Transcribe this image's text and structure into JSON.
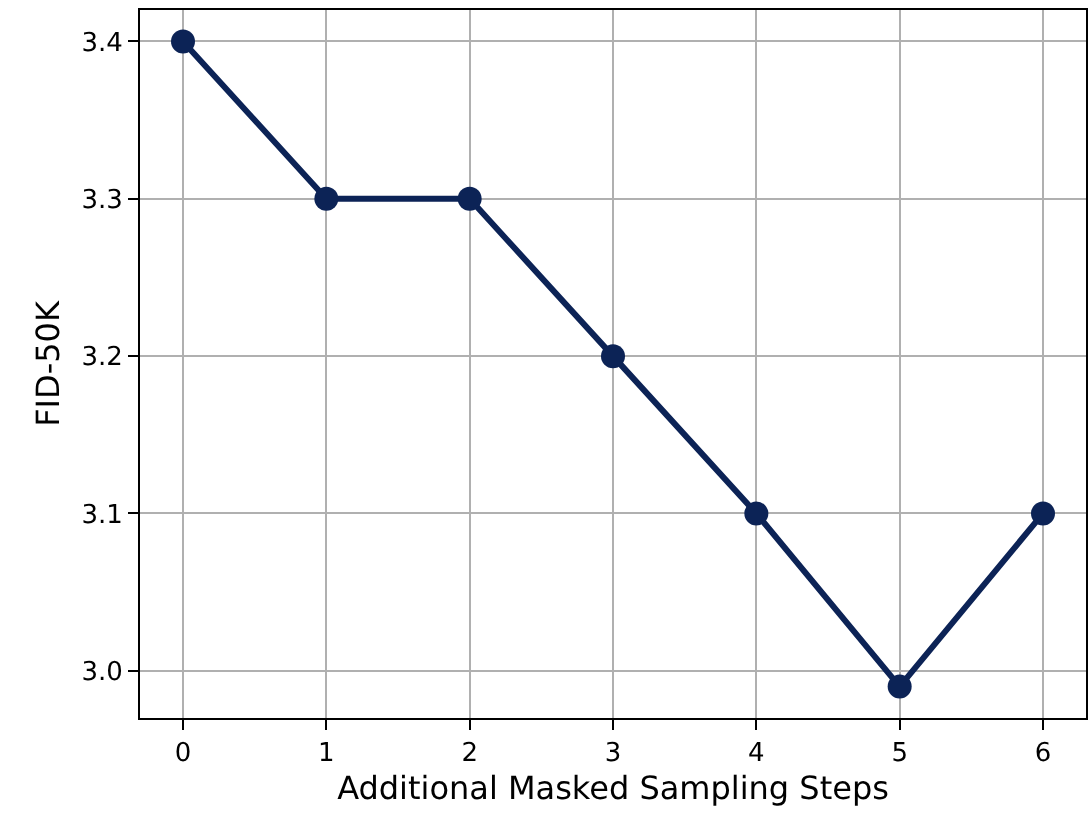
{
  "chart_data": {
    "type": "line",
    "xlabel": "Additional Masked Sampling Steps",
    "ylabel": "FID-50K",
    "x": [
      0,
      1,
      2,
      3,
      4,
      5,
      6
    ],
    "series": [
      {
        "color": "#0c2356",
        "values": [
          3.4,
          3.3,
          3.3,
          3.2,
          3.1,
          2.99,
          3.1
        ]
      }
    ],
    "xlim": [
      -0.3,
      6.3
    ],
    "xticks": [
      0,
      1,
      2,
      3,
      4,
      5,
      6
    ],
    "ylim": [
      2.97,
      3.42
    ],
    "yticks": [
      {
        "value": 3.0,
        "label": "3.0"
      },
      {
        "value": 3.1,
        "label": "3.1"
      },
      {
        "value": 3.2,
        "label": "3.2"
      },
      {
        "value": 3.3,
        "label": "3.3"
      },
      {
        "value": 3.4,
        "label": "3.4"
      }
    ],
    "grid": true,
    "marker": "circle",
    "line_style": "solid"
  }
}
